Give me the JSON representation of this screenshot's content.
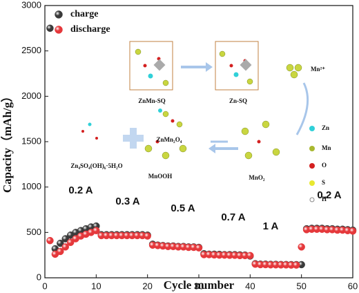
{
  "chart_data": {
    "type": "scatter",
    "xlabel": "Cycle number",
    "ylabel": "Capacity（mAh/g）",
    "xlim": [
      0,
      60
    ],
    "ylim": [
      0,
      3000
    ],
    "xticks": [
      0,
      10,
      20,
      30,
      40,
      50,
      60
    ],
    "yticks": [
      0,
      500,
      1000,
      1500,
      2000,
      2500,
      3000
    ],
    "x": [
      1,
      2,
      3,
      4,
      5,
      6,
      7,
      8,
      9,
      10,
      11,
      12,
      13,
      14,
      15,
      16,
      17,
      18,
      19,
      20,
      21,
      22,
      23,
      24,
      25,
      26,
      27,
      28,
      29,
      30,
      31,
      32,
      33,
      34,
      35,
      36,
      37,
      38,
      39,
      40,
      41,
      42,
      43,
      44,
      45,
      46,
      47,
      48,
      49,
      50,
      51,
      52,
      53,
      54,
      55,
      56,
      57,
      58,
      59,
      60
    ],
    "series": [
      {
        "name": "charge",
        "color": "#3a3a3a",
        "values": [
          2750,
          320,
          380,
          430,
          470,
          500,
          520,
          540,
          560,
          570,
          475,
          475,
          475,
          475,
          475,
          475,
          475,
          475,
          475,
          470,
          370,
          360,
          355,
          350,
          350,
          345,
          345,
          340,
          340,
          335,
          265,
          260,
          260,
          258,
          255,
          255,
          255,
          252,
          250,
          240,
          155,
          150,
          150,
          148,
          148,
          146,
          146,
          145,
          145,
          145,
          540,
          545,
          545,
          545,
          540,
          540,
          535,
          535,
          530,
          525
        ]
      },
      {
        "name": "discharge",
        "color": "#e5383b",
        "values": [
          410,
          260,
          290,
          340,
          390,
          430,
          460,
          480,
          500,
          520,
          465,
          465,
          465,
          465,
          465,
          465,
          465,
          465,
          465,
          460,
          360,
          355,
          350,
          345,
          345,
          340,
          340,
          335,
          335,
          330,
          255,
          255,
          252,
          250,
          250,
          248,
          248,
          245,
          245,
          245,
          150,
          145,
          145,
          143,
          143,
          142,
          142,
          140,
          140,
          340,
          530,
          535,
          535,
          535,
          530,
          530,
          525,
          525,
          520,
          515
        ]
      }
    ],
    "annotations": [
      "0.2 A",
      "0.3 A",
      "0.5 A",
      "0.7 A",
      "1 A",
      "0.2 A"
    ]
  },
  "inset": {
    "labels": [
      "ZnMn-SQ",
      "Zn-SQ",
      "Mn²⁺",
      "ZnMn₂O₄",
      "Zn₄SO₄(OH)₆·5H₂O",
      "MnOOH",
      "MnO₂"
    ],
    "legend": [
      "Zn",
      "Mn",
      "O",
      "S",
      "H"
    ]
  }
}
